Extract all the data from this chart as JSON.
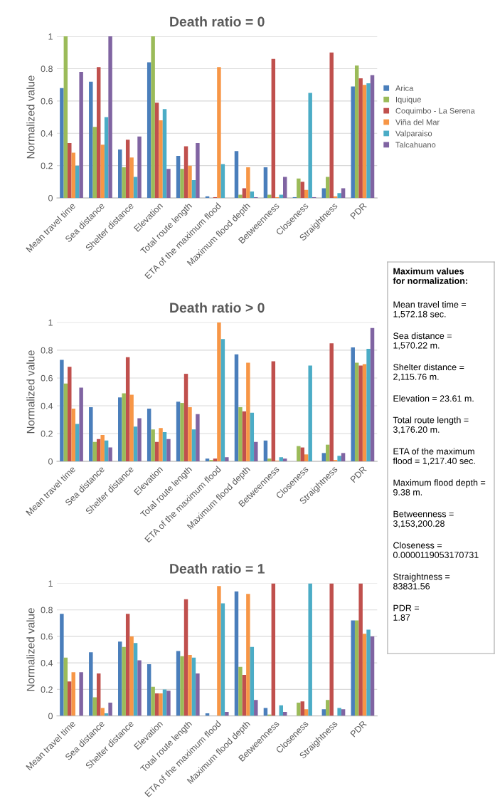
{
  "chart_data": [
    {
      "type": "bar",
      "title": "Death ratio = 0",
      "ylabel": "Normalized value",
      "categories": [
        "Mean travel time",
        "Sea distance",
        "Shelter distance",
        "Elevation",
        "Total route length",
        "ETA of the maximum flood",
        "Maximum flood depth",
        "Betweenness",
        "Closeness",
        "Straightness",
        "PDR"
      ],
      "ylim": [
        0,
        1
      ],
      "yticks": [
        0,
        0.2,
        0.4,
        0.6,
        0.8,
        1
      ],
      "grid": "y",
      "legend": "right",
      "series": [
        {
          "name": "Arica",
          "color": "#4a7ebb",
          "values": [
            0.68,
            0.72,
            0.3,
            0.84,
            0.26,
            0.01,
            0.29,
            0.19,
            0.005,
            0.06,
            0.69
          ]
        },
        {
          "name": "Iquique",
          "color": "#9bbb59",
          "values": [
            1.0,
            0.44,
            0.19,
            1.0,
            0.18,
            0,
            0.02,
            0.02,
            0.12,
            0.13,
            0.82
          ]
        },
        {
          "name": "Coquimbo - La Serena",
          "color": "#c0504d",
          "values": [
            0.34,
            0.81,
            0.36,
            0.59,
            0.32,
            0.005,
            0.06,
            0.86,
            0.1,
            0.9,
            0.74
          ]
        },
        {
          "name": "Viña del Mar",
          "color": "#f79646",
          "values": [
            0.28,
            0.33,
            0.25,
            0.48,
            0.2,
            0.81,
            0.19,
            0.005,
            0.05,
            0.01,
            0.7
          ]
        },
        {
          "name": "Valparaiso",
          "color": "#4bacc6",
          "values": [
            0.2,
            0.5,
            0.13,
            0.55,
            0.11,
            0.21,
            0.04,
            0.02,
            0.65,
            0.03,
            0.71
          ]
        },
        {
          "name": "Talcahuano",
          "color": "#8064a2",
          "values": [
            0.78,
            1.0,
            0.38,
            0.18,
            0.34,
            0,
            0.005,
            0.13,
            0.005,
            0.06,
            0.76
          ]
        }
      ]
    },
    {
      "type": "bar",
      "title": "Death ratio > 0",
      "ylabel": "Normalized value",
      "categories": [
        "Mean travel time",
        "Sea distance",
        "Shelter distance",
        "Elevation",
        "Total route length",
        "ETA of the maximum flood",
        "Maximum flood depth",
        "Betweenness",
        "Closeness",
        "Straightness",
        "PDR"
      ],
      "ylim": [
        0,
        1
      ],
      "yticks": [
        0,
        0.2,
        0.4,
        0.6,
        0.8,
        1
      ],
      "grid": "y",
      "series": [
        {
          "color": "#4a7ebb",
          "values": [
            0.73,
            0.39,
            0.46,
            0.38,
            0.43,
            0.02,
            0.77,
            0.15,
            0,
            0.06,
            0.82
          ]
        },
        {
          "color": "#9bbb59",
          "values": [
            0.56,
            0.14,
            0.49,
            0.23,
            0.42,
            0.01,
            0.39,
            0.02,
            0.11,
            0.12,
            0.71
          ]
        },
        {
          "color": "#c0504d",
          "values": [
            0.68,
            0.16,
            0.75,
            0.14,
            0.63,
            0.02,
            0.36,
            0.72,
            0.1,
            0.85,
            0.69
          ]
        },
        {
          "color": "#f79646",
          "values": [
            0.38,
            0.19,
            0.48,
            0.24,
            0.39,
            1.0,
            0.71,
            0.005,
            0.05,
            0.01,
            0.7
          ]
        },
        {
          "color": "#4bacc6",
          "values": [
            0.27,
            0.15,
            0.25,
            0.21,
            0.23,
            0.88,
            0.35,
            0.03,
            0.69,
            0.04,
            0.81
          ]
        },
        {
          "color": "#8064a2",
          "values": [
            0.53,
            0.1,
            0.31,
            0.16,
            0.34,
            0.03,
            0.14,
            0.02,
            0,
            0.06,
            0.96
          ]
        }
      ]
    },
    {
      "type": "bar",
      "title": "Death ratio = 1",
      "ylabel": "Normalized value",
      "categories": [
        "Mean travel time",
        "Sea distance",
        "Shelter distance",
        "Elevation",
        "Total route length",
        "ETA of the maximum flood",
        "Maximum flood depth",
        "Betweenness",
        "Closeness",
        "Straightness",
        "PDR"
      ],
      "ylim": [
        0,
        1
      ],
      "yticks": [
        0,
        0.2,
        0.4,
        0.6,
        0.8,
        1
      ],
      "grid": "y",
      "series": [
        {
          "color": "#4a7ebb",
          "values": [
            0.77,
            0.48,
            0.56,
            0.39,
            0.49,
            0.02,
            0.94,
            0.06,
            0,
            0.05,
            0.72
          ]
        },
        {
          "color": "#9bbb59",
          "values": [
            0.44,
            0.14,
            0.52,
            0.22,
            0.45,
            null,
            0.37,
            0.01,
            0.1,
            0.12,
            0.72
          ]
        },
        {
          "color": "#c0504d",
          "values": [
            0.26,
            0.32,
            0.77,
            0.17,
            0.88,
            null,
            0.31,
            1.0,
            0.11,
            1.0,
            1.0
          ]
        },
        {
          "color": "#f79646",
          "values": [
            0.33,
            0.06,
            0.6,
            0.17,
            0.46,
            0.98,
            0.92,
            null,
            0.05,
            null,
            0.62
          ]
        },
        {
          "color": "#4bacc6",
          "values": [
            0,
            0.02,
            0.55,
            0.2,
            0.44,
            0.85,
            0.52,
            0.08,
            1.0,
            0.06,
            0.65
          ]
        },
        {
          "color": "#8064a2",
          "values": [
            0.33,
            0.1,
            0.42,
            0.19,
            0.32,
            0.03,
            0.12,
            0.03,
            0,
            0.05,
            0.6
          ]
        }
      ]
    },
    {
      "type": "other",
      "title": "Maximum values\nfor normalization:",
      "annotations": [
        "Mean travel time =\n1,572.18 sec.",
        "Sea distance =\n1,570.22 m.",
        "Shelter distance =\n2,115.76 m.",
        "Elevation = 23.61 m.",
        "Total route length =\n3,176.20 m.",
        "ETA of the maximum\nflood = 1,217.40 sec.",
        "Maximum flood depth =\n9.38 m.",
        "Betweenness =\n3,153,200.28",
        "Closeness =\n0.0000119053170731",
        "Straightness =\n83831.56",
        "PDR =\n1.87"
      ]
    }
  ]
}
